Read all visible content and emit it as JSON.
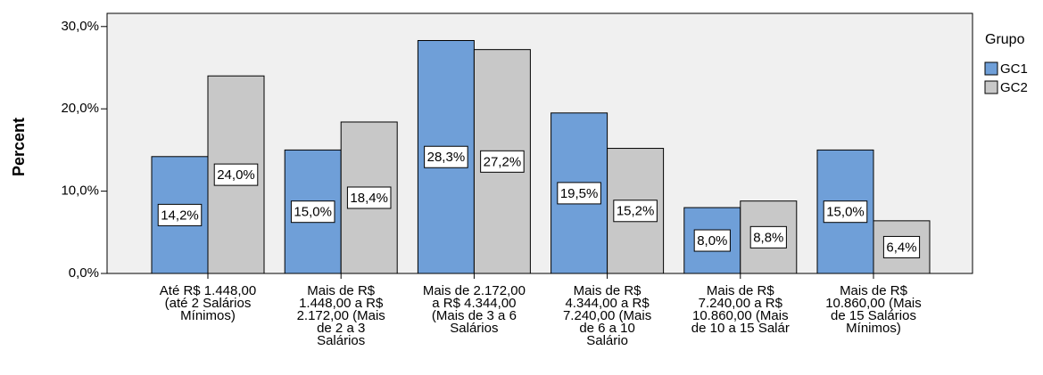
{
  "chart_data": {
    "type": "bar",
    "ylabel": "Percent",
    "legend_title": "Grupo",
    "categories": [
      "Até R$ 1.448,00\n(até 2 Salários\nMínimos)",
      "Mais de R$\n1.448,00 a R$\n2.172,00  (Mais\nde  2 a 3\nSalários",
      "Mais de 2.172,00\na R$ 4.344,00\n(Mais de  3 a 6\nSalários",
      "Mais de R$\n4.344,00 a R$\n7.240,00  (Mais\nde  6 a 10\nSalário",
      "Mais de R$\n7.240,00 a R$\n10.860,00  (Mais\nde  10 a 15 Salár",
      "Mais de R$\n10.860,00 (Mais\nde 15 Salários\nMínimos)"
    ],
    "series": [
      {
        "name": "GC1",
        "color": "#6f9fd8",
        "values": [
          14.2,
          15.0,
          28.3,
          19.5,
          8.0,
          15.0
        ],
        "value_labels": [
          "14,2%",
          "15,0%",
          "28,3%",
          "19,5%",
          "8,0%",
          "15,0%"
        ]
      },
      {
        "name": "GC2",
        "color": "#c8c8c8",
        "values": [
          24.0,
          18.4,
          27.2,
          15.2,
          8.8,
          6.4
        ],
        "value_labels": [
          "24,0%",
          "18,4%",
          "27,2%",
          "15,2%",
          "8,8%",
          "6,4%"
        ]
      }
    ],
    "ylim": [
      0,
      31.6
    ],
    "yticks": [
      {
        "value": 0,
        "label": "0,0%"
      },
      {
        "value": 10,
        "label": "10,0%"
      },
      {
        "value": 20,
        "label": "20,0%"
      },
      {
        "value": 30,
        "label": "30,0%"
      }
    ],
    "plot_background": "#f0f0f0"
  }
}
